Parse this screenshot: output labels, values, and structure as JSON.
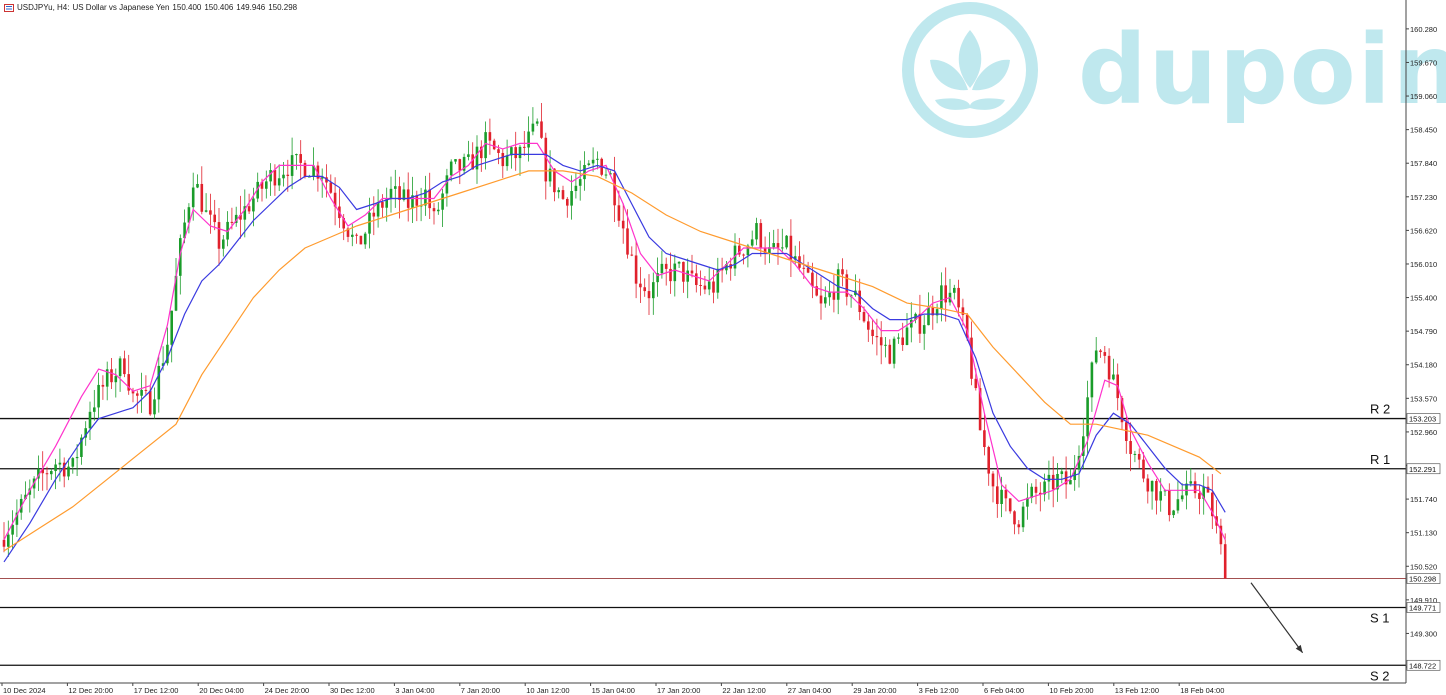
{
  "header": {
    "symbol": "USDJPYu, H4:",
    "description": "US Dollar vs Japanese Yen",
    "open": "150.400",
    "high": "150.406",
    "low": "149.946",
    "close": "150.298"
  },
  "watermark": {
    "text": "dupoin"
  },
  "colors": {
    "bull": "#1a9c2a",
    "bear": "#e0212c",
    "ma_fast": "#ff33cc",
    "ma_mid": "#3a3ae0",
    "ma_slow": "#ff9b2e",
    "levels": "#111111",
    "current": "#a35050",
    "arrow": "#333333",
    "watermark": "#bfe8ee"
  },
  "chart_data": {
    "type": "candlestick",
    "ylim": [
      148.4,
      160.55
    ],
    "y_ticks": [
      "160.280",
      "159.670",
      "159.060",
      "158.450",
      "157.840",
      "157.230",
      "156.620",
      "156.010",
      "155.400",
      "154.790",
      "154.180",
      "153.570",
      "152.960",
      "152.350",
      "151.740",
      "151.130",
      "150.520",
      "149.910",
      "149.300",
      "148.690"
    ],
    "x_ticks": [
      "10 Dec 2024",
      "12 Dec 20:00",
      "17 Dec 12:00",
      "20 Dec 04:00",
      "24 Dec 20:00",
      "30 Dec 12:00",
      "3 Jan 04:00",
      "7 Jan 20:00",
      "10 Jan 12:00",
      "15 Jan 04:00",
      "17 Jan 20:00",
      "22 Jan 12:00",
      "27 Jan 04:00",
      "29 Jan 20:00",
      "3 Feb 12:00",
      "6 Feb 04:00",
      "10 Feb 20:00",
      "13 Feb 12:00",
      "18 Feb 04:00"
    ],
    "bar_count": 285,
    "close_path": [
      [
        0,
        151.1
      ],
      [
        4,
        151.6
      ],
      [
        8,
        152.1
      ],
      [
        12,
        152.4
      ],
      [
        16,
        152.3
      ],
      [
        20,
        153.4
      ],
      [
        24,
        153.9
      ],
      [
        28,
        154.2
      ],
      [
        30,
        153.6
      ],
      [
        34,
        153.5
      ],
      [
        38,
        154.6
      ],
      [
        41,
        156.3
      ],
      [
        44,
        157.6
      ],
      [
        47,
        156.9
      ],
      [
        50,
        156.4
      ],
      [
        54,
        156.8
      ],
      [
        58,
        157.2
      ],
      [
        62,
        157.6
      ],
      [
        66,
        157.8
      ],
      [
        70,
        157.8
      ],
      [
        74,
        157.7
      ],
      [
        78,
        157.0
      ],
      [
        82,
        156.3
      ],
      [
        86,
        156.9
      ],
      [
        90,
        157.3
      ],
      [
        94,
        157.1
      ],
      [
        98,
        157.3
      ],
      [
        100,
        156.8
      ],
      [
        104,
        157.7
      ],
      [
        108,
        157.8
      ],
      [
        112,
        158.2
      ],
      [
        116,
        157.9
      ],
      [
        120,
        158.0
      ],
      [
        124,
        158.5
      ],
      [
        126,
        157.7
      ],
      [
        130,
        157.2
      ],
      [
        134,
        157.5
      ],
      [
        138,
        157.9
      ],
      [
        141,
        157.6
      ],
      [
        144,
        156.7
      ],
      [
        147,
        155.8
      ],
      [
        150,
        155.5
      ],
      [
        153,
        155.8
      ],
      [
        157,
        155.9
      ],
      [
        161,
        155.6
      ],
      [
        165,
        155.6
      ],
      [
        169,
        156.1
      ],
      [
        173,
        156.4
      ],
      [
        175,
        156.6
      ],
      [
        178,
        156.2
      ],
      [
        182,
        156.3
      ],
      [
        186,
        155.8
      ],
      [
        190,
        155.2
      ],
      [
        194,
        155.7
      ],
      [
        198,
        155.4
      ],
      [
        202,
        154.7
      ],
      [
        206,
        154.4
      ],
      [
        210,
        154.8
      ],
      [
        214,
        155.0
      ],
      [
        218,
        155.5
      ],
      [
        221,
        155.4
      ],
      [
        224,
        154.6
      ],
      [
        227,
        153.0
      ],
      [
        230,
        152.0
      ],
      [
        233,
        151.6
      ],
      [
        236,
        151.4
      ],
      [
        239,
        151.8
      ],
      [
        242,
        151.9
      ],
      [
        245,
        152.1
      ],
      [
        248,
        152.0
      ],
      [
        251,
        153.1
      ],
      [
        254,
        154.5
      ],
      [
        256,
        154.4
      ],
      [
        259,
        153.6
      ],
      [
        262,
        152.7
      ],
      [
        265,
        152.2
      ],
      [
        268,
        151.9
      ],
      [
        271,
        151.6
      ],
      [
        274,
        151.8
      ],
      [
        277,
        151.9
      ],
      [
        279,
        151.9
      ],
      [
        281,
        151.5
      ],
      [
        283,
        150.8
      ],
      [
        284,
        150.298
      ]
    ],
    "series": [
      {
        "name": "",
        "color_key": "ma_fast",
        "path": [
          [
            0,
            151.0
          ],
          [
            6,
            151.9
          ],
          [
            12,
            152.7
          ],
          [
            18,
            153.6
          ],
          [
            22,
            154.1
          ],
          [
            26,
            154.0
          ],
          [
            30,
            153.7
          ],
          [
            34,
            153.8
          ],
          [
            38,
            154.9
          ],
          [
            41,
            156.2
          ],
          [
            44,
            157.0
          ],
          [
            48,
            156.7
          ],
          [
            52,
            156.6
          ],
          [
            56,
            157.0
          ],
          [
            60,
            157.5
          ],
          [
            64,
            157.8
          ],
          [
            68,
            157.8
          ],
          [
            72,
            157.8
          ],
          [
            76,
            157.2
          ],
          [
            80,
            156.7
          ],
          [
            84,
            156.9
          ],
          [
            88,
            157.2
          ],
          [
            92,
            157.2
          ],
          [
            96,
            157.2
          ],
          [
            100,
            157.2
          ],
          [
            104,
            157.6
          ],
          [
            108,
            157.8
          ],
          [
            112,
            158.2
          ],
          [
            116,
            158.1
          ],
          [
            120,
            158.2
          ],
          [
            124,
            158.2
          ],
          [
            128,
            157.7
          ],
          [
            132,
            157.5
          ],
          [
            136,
            157.7
          ],
          [
            140,
            157.8
          ],
          [
            144,
            157.1
          ],
          [
            148,
            156.2
          ],
          [
            152,
            155.8
          ],
          [
            156,
            155.9
          ],
          [
            160,
            155.8
          ],
          [
            164,
            155.7
          ],
          [
            168,
            156.0
          ],
          [
            172,
            156.3
          ],
          [
            176,
            156.3
          ],
          [
            180,
            156.3
          ],
          [
            184,
            156.0
          ],
          [
            188,
            155.6
          ],
          [
            192,
            155.5
          ],
          [
            196,
            155.5
          ],
          [
            200,
            155.2
          ],
          [
            204,
            154.8
          ],
          [
            208,
            154.8
          ],
          [
            212,
            155.0
          ],
          [
            216,
            155.3
          ],
          [
            220,
            155.4
          ],
          [
            224,
            154.8
          ],
          [
            228,
            153.3
          ],
          [
            232,
            152.0
          ],
          [
            236,
            151.7
          ],
          [
            240,
            151.8
          ],
          [
            244,
            151.9
          ],
          [
            248,
            152.1
          ],
          [
            252,
            152.8
          ],
          [
            256,
            153.9
          ],
          [
            259,
            153.8
          ],
          [
            262,
            153.0
          ],
          [
            266,
            152.4
          ],
          [
            270,
            151.9
          ],
          [
            274,
            151.9
          ],
          [
            278,
            151.9
          ],
          [
            281,
            151.5
          ],
          [
            284,
            151.0
          ]
        ]
      },
      {
        "name": "",
        "color_key": "ma_mid",
        "path": [
          [
            0,
            150.6
          ],
          [
            6,
            151.3
          ],
          [
            12,
            152.1
          ],
          [
            18,
            152.8
          ],
          [
            22,
            153.2
          ],
          [
            26,
            153.3
          ],
          [
            30,
            153.4
          ],
          [
            34,
            153.7
          ],
          [
            38,
            154.3
          ],
          [
            42,
            155.1
          ],
          [
            46,
            155.7
          ],
          [
            50,
            156.0
          ],
          [
            54,
            156.4
          ],
          [
            58,
            156.8
          ],
          [
            62,
            157.1
          ],
          [
            66,
            157.4
          ],
          [
            70,
            157.6
          ],
          [
            74,
            157.6
          ],
          [
            78,
            157.4
          ],
          [
            82,
            157.0
          ],
          [
            86,
            157.1
          ],
          [
            90,
            157.2
          ],
          [
            94,
            157.2
          ],
          [
            98,
            157.3
          ],
          [
            102,
            157.5
          ],
          [
            106,
            157.6
          ],
          [
            110,
            157.8
          ],
          [
            114,
            157.9
          ],
          [
            118,
            158.0
          ],
          [
            122,
            158.0
          ],
          [
            126,
            158.0
          ],
          [
            130,
            157.8
          ],
          [
            134,
            157.7
          ],
          [
            138,
            157.8
          ],
          [
            142,
            157.7
          ],
          [
            146,
            157.1
          ],
          [
            150,
            156.5
          ],
          [
            154,
            156.2
          ],
          [
            158,
            156.1
          ],
          [
            162,
            156.0
          ],
          [
            166,
            155.9
          ],
          [
            170,
            156.0
          ],
          [
            174,
            156.2
          ],
          [
            178,
            156.2
          ],
          [
            182,
            156.2
          ],
          [
            186,
            156.0
          ],
          [
            190,
            155.8
          ],
          [
            194,
            155.6
          ],
          [
            198,
            155.5
          ],
          [
            202,
            155.2
          ],
          [
            206,
            155.0
          ],
          [
            210,
            155.0
          ],
          [
            214,
            155.1
          ],
          [
            218,
            155.1
          ],
          [
            222,
            155.0
          ],
          [
            226,
            154.3
          ],
          [
            230,
            153.3
          ],
          [
            234,
            152.7
          ],
          [
            238,
            152.3
          ],
          [
            242,
            152.1
          ],
          [
            246,
            152.1
          ],
          [
            250,
            152.2
          ],
          [
            254,
            152.9
          ],
          [
            258,
            153.3
          ],
          [
            262,
            153.1
          ],
          [
            266,
            152.7
          ],
          [
            270,
            152.3
          ],
          [
            274,
            152.0
          ],
          [
            278,
            152.0
          ],
          [
            281,
            151.9
          ],
          [
            284,
            151.5
          ]
        ]
      },
      {
        "name": "",
        "color_key": "ma_slow",
        "path": [
          [
            0,
            150.8
          ],
          [
            8,
            151.2
          ],
          [
            16,
            151.6
          ],
          [
            24,
            152.1
          ],
          [
            32,
            152.6
          ],
          [
            40,
            153.1
          ],
          [
            46,
            154.0
          ],
          [
            52,
            154.7
          ],
          [
            58,
            155.4
          ],
          [
            64,
            155.9
          ],
          [
            70,
            156.3
          ],
          [
            76,
            156.5
          ],
          [
            82,
            156.7
          ],
          [
            90,
            156.9
          ],
          [
            98,
            157.1
          ],
          [
            106,
            157.3
          ],
          [
            114,
            157.5
          ],
          [
            122,
            157.7
          ],
          [
            130,
            157.7
          ],
          [
            138,
            157.6
          ],
          [
            146,
            157.3
          ],
          [
            154,
            156.9
          ],
          [
            162,
            156.6
          ],
          [
            170,
            156.4
          ],
          [
            178,
            156.2
          ],
          [
            186,
            156.0
          ],
          [
            194,
            155.8
          ],
          [
            202,
            155.6
          ],
          [
            210,
            155.3
          ],
          [
            218,
            155.2
          ],
          [
            224,
            155.1
          ],
          [
            230,
            154.5
          ],
          [
            236,
            154.0
          ],
          [
            242,
            153.5
          ],
          [
            248,
            153.1
          ],
          [
            254,
            153.1
          ],
          [
            260,
            153.0
          ],
          [
            266,
            152.9
          ],
          [
            272,
            152.7
          ],
          [
            278,
            152.5
          ],
          [
            283,
            152.2
          ]
        ]
      }
    ],
    "levels": [
      {
        "label": "R 2",
        "value": 153.203,
        "tag": "153.203"
      },
      {
        "label": "R 1",
        "value": 152.291,
        "tag": "152.291"
      },
      {
        "label": "S 1",
        "value": 149.771,
        "tag": "149.771"
      },
      {
        "label": "S 2",
        "value": 148.722,
        "tag": "148.722"
      }
    ],
    "current_price": {
      "value": 150.298,
      "tag": "150.298"
    },
    "projection": {
      "from": [
        290,
        150.22
      ],
      "to": [
        302,
        148.95
      ]
    }
  }
}
